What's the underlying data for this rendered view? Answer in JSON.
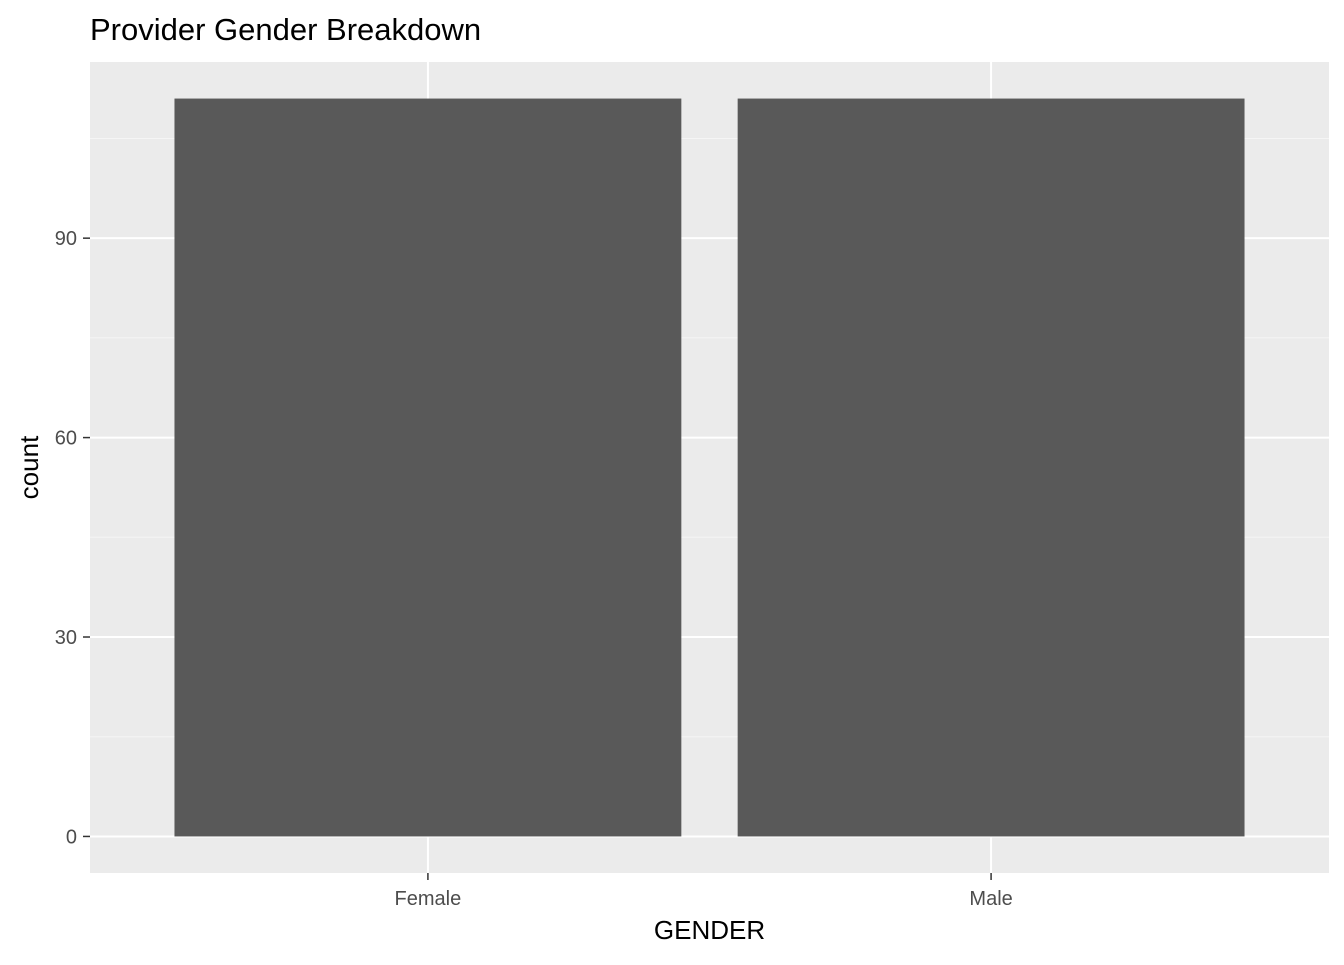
{
  "chart_data": {
    "type": "bar",
    "title": "Provider Gender Breakdown",
    "xlabel": "GENDER",
    "ylabel": "count",
    "categories": [
      "Female",
      "Male"
    ],
    "values": [
      111,
      111
    ],
    "ylim": [
      -5.5,
      116.5
    ],
    "yticks": [
      0,
      30,
      60,
      90
    ],
    "ytick_labels": [
      "0",
      "30",
      "60",
      "90"
    ],
    "grid": true,
    "legend": "none",
    "colors": {
      "bar": "#595959",
      "panel_background": "#ebebeb",
      "grid_major": "#ffffff",
      "grid_minor": "#f5f5f5",
      "axis_text": "#4d4d4d",
      "tick": "#333333",
      "title_text": "#000000"
    }
  }
}
